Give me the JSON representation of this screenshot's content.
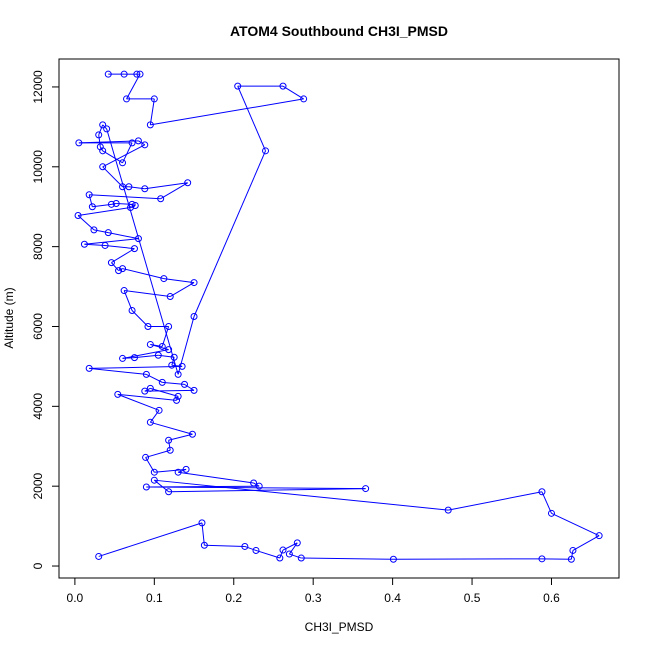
{
  "chart_data": {
    "type": "line",
    "title": "ATOM4 Southbound CH3I_PMSD",
    "xlabel": "CH3I_PMSD",
    "ylabel": "Altitude (m)",
    "xlim": [
      -0.02,
      0.685
    ],
    "ylim": [
      -300,
      12700
    ],
    "xticks": [
      0.0,
      0.1,
      0.2,
      0.3,
      0.4,
      0.5,
      0.6
    ],
    "yticks": [
      0,
      2000,
      4000,
      6000,
      8000,
      10000,
      12000
    ],
    "xtick_labels": [
      "0.0",
      "0.1",
      "0.2",
      "0.3",
      "0.4",
      "0.5",
      "0.6"
    ],
    "ytick_labels": [
      "0",
      "2000",
      "4000",
      "6000",
      "8000",
      "10000",
      "12000"
    ],
    "grid": false,
    "series": [
      {
        "color": "#0000ff",
        "marker": "open-circle",
        "points": [
          [
            0.042,
            12320
          ],
          [
            0.062,
            12320
          ],
          [
            0.078,
            12320
          ],
          [
            0.082,
            12320
          ],
          [
            0.065,
            11700
          ],
          [
            0.1,
            11700
          ],
          [
            0.095,
            11050
          ],
          [
            0.288,
            11700
          ],
          [
            0.262,
            12020
          ],
          [
            0.205,
            12020
          ],
          [
            0.24,
            10400
          ],
          [
            0.15,
            6250
          ],
          [
            0.13,
            4800
          ],
          [
            0.04,
            10950
          ],
          [
            0.035,
            11050
          ],
          [
            0.03,
            10800
          ],
          [
            0.032,
            10500
          ],
          [
            0.035,
            10400
          ],
          [
            0.06,
            10100
          ],
          [
            0.072,
            10600
          ],
          [
            0.005,
            10600
          ],
          [
            0.08,
            10650
          ],
          [
            0.088,
            10550
          ],
          [
            0.035,
            10000
          ],
          [
            0.06,
            9500
          ],
          [
            0.068,
            9500
          ],
          [
            0.088,
            9450
          ],
          [
            0.142,
            9600
          ],
          [
            0.108,
            9200
          ],
          [
            0.018,
            9300
          ],
          [
            0.022,
            9000
          ],
          [
            0.046,
            9060
          ],
          [
            0.052,
            9080
          ],
          [
            0.072,
            9060
          ],
          [
            0.076,
            9030
          ],
          [
            0.07,
            8980
          ],
          [
            0.004,
            8780
          ],
          [
            0.024,
            8420
          ],
          [
            0.042,
            8350
          ],
          [
            0.08,
            8200
          ],
          [
            0.012,
            8060
          ],
          [
            0.038,
            8030
          ],
          [
            0.075,
            7950
          ],
          [
            0.046,
            7600
          ],
          [
            0.055,
            7400
          ],
          [
            0.06,
            7450
          ],
          [
            0.112,
            7200
          ],
          [
            0.15,
            7100
          ],
          [
            0.12,
            6750
          ],
          [
            0.062,
            6900
          ],
          [
            0.072,
            6400
          ],
          [
            0.092,
            6000
          ],
          [
            0.118,
            6000
          ],
          [
            0.11,
            5500
          ],
          [
            0.095,
            5550
          ],
          [
            0.118,
            5420
          ],
          [
            0.06,
            5200
          ],
          [
            0.075,
            5220
          ],
          [
            0.105,
            5280
          ],
          [
            0.125,
            5230
          ],
          [
            0.122,
            5030
          ],
          [
            0.135,
            5000
          ],
          [
            0.018,
            4950
          ],
          [
            0.09,
            4800
          ],
          [
            0.11,
            4600
          ],
          [
            0.138,
            4550
          ],
          [
            0.15,
            4400
          ],
          [
            0.088,
            4380
          ],
          [
            0.095,
            4450
          ],
          [
            0.13,
            4250
          ],
          [
            0.128,
            4150
          ],
          [
            0.054,
            4300
          ],
          [
            0.106,
            3900
          ],
          [
            0.095,
            3600
          ],
          [
            0.148,
            3300
          ],
          [
            0.118,
            3150
          ],
          [
            0.12,
            2900
          ],
          [
            0.089,
            2720
          ],
          [
            0.1,
            2350
          ],
          [
            0.14,
            2420
          ],
          [
            0.13,
            2350
          ],
          [
            0.225,
            2080
          ],
          [
            0.232,
            2000
          ],
          [
            0.09,
            1980
          ],
          [
            0.366,
            1940
          ],
          [
            0.118,
            1860
          ],
          [
            0.1,
            2150
          ],
          [
            0.47,
            1400
          ],
          [
            0.588,
            1860
          ],
          [
            0.6,
            1320
          ],
          [
            0.66,
            760
          ],
          [
            0.627,
            390
          ],
          [
            0.625,
            170
          ],
          [
            0.588,
            180
          ],
          [
            0.401,
            170
          ],
          [
            0.285,
            200
          ],
          [
            0.27,
            300
          ],
          [
            0.28,
            580
          ],
          [
            0.262,
            400
          ],
          [
            0.258,
            200
          ],
          [
            0.228,
            390
          ],
          [
            0.214,
            490
          ],
          [
            0.163,
            520
          ],
          [
            0.16,
            1080
          ],
          [
            0.03,
            240
          ]
        ]
      }
    ]
  }
}
